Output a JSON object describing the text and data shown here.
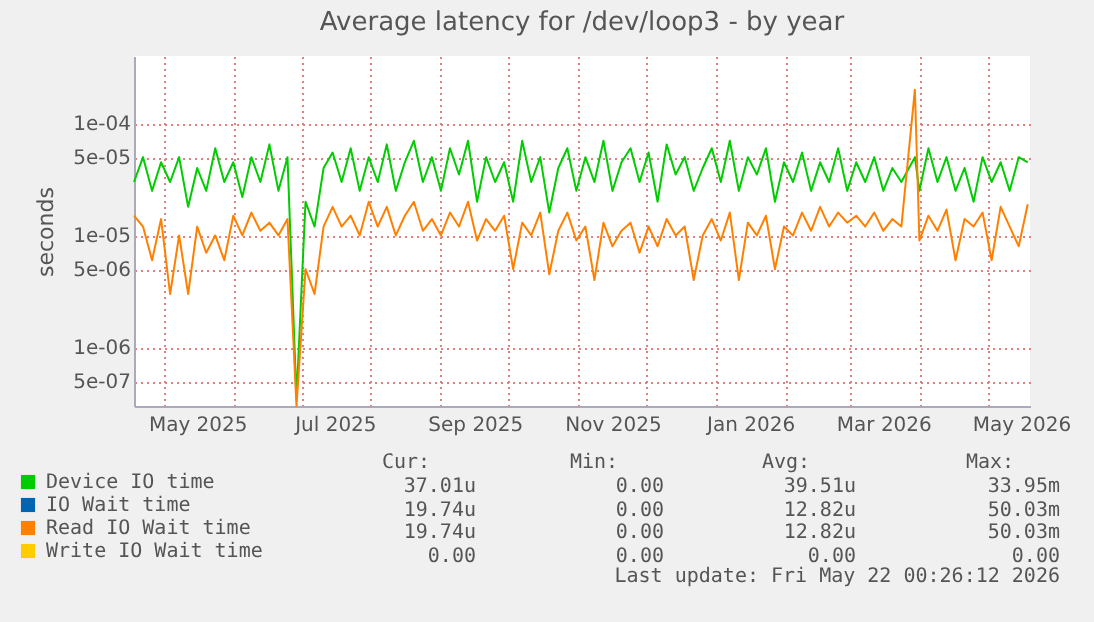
{
  "chart_data": {
    "type": "line",
    "title": "Average latency for /dev/loop3 - by year",
    "ylabel": "seconds",
    "log": true,
    "grid": true,
    "legend": "bottom left",
    "xlim": [
      "2025-04-18",
      "2026-05-20"
    ],
    "xticks": [
      {
        "value": "2025-05-01",
        "label": null
      },
      {
        "value": "2025-05-16",
        "label": "May 2025"
      },
      {
        "value": "2025-06-01",
        "label": null
      },
      {
        "value": "2025-07-01",
        "label": null
      },
      {
        "value": "2025-07-16",
        "label": "Jul 2025"
      },
      {
        "value": "2025-08-01",
        "label": null
      },
      {
        "value": "2025-09-01",
        "label": null
      },
      {
        "value": "2025-09-16",
        "label": "Sep 2025"
      },
      {
        "value": "2025-10-01",
        "label": null
      },
      {
        "value": "2025-11-01",
        "label": null
      },
      {
        "value": "2025-11-16",
        "label": "Nov 2025"
      },
      {
        "value": "2025-12-01",
        "label": null
      },
      {
        "value": "2026-01-01",
        "label": null
      },
      {
        "value": "2026-01-16",
        "label": "Jan 2026"
      },
      {
        "value": "2026-02-01",
        "label": null
      },
      {
        "value": "2026-03-01",
        "label": null
      },
      {
        "value": "2026-03-16",
        "label": "Mar 2026"
      },
      {
        "value": "2026-04-01",
        "label": null
      },
      {
        "value": "2026-05-01",
        "label": null
      },
      {
        "value": "2026-05-16",
        "label": "May 2026"
      }
    ],
    "ylim": [
      3e-07,
      0.0004
    ],
    "yticks": [
      {
        "value": 5e-07,
        "label": "5e-07"
      },
      {
        "value": 1e-06,
        "label": "1e-06"
      },
      {
        "value": 5e-06,
        "label": "5e-06"
      },
      {
        "value": 1e-05,
        "label": "1e-05"
      },
      {
        "value": 5e-05,
        "label": "5e-05"
      },
      {
        "value": 0.0001,
        "label": "1e-04"
      }
    ],
    "x": [
      "2025-04-18",
      "2025-04-22",
      "2025-04-26",
      "2025-04-30",
      "2025-05-04",
      "2025-05-08",
      "2025-05-12",
      "2025-05-16",
      "2025-05-20",
      "2025-05-24",
      "2025-05-28",
      "2025-06-01",
      "2025-06-05",
      "2025-06-09",
      "2025-06-13",
      "2025-06-17",
      "2025-06-21",
      "2025-06-25",
      "2025-06-29",
      "2025-07-03",
      "2025-07-07",
      "2025-07-11",
      "2025-07-15",
      "2025-07-19",
      "2025-07-23",
      "2025-07-27",
      "2025-07-31",
      "2025-08-04",
      "2025-08-08",
      "2025-08-12",
      "2025-08-16",
      "2025-08-20",
      "2025-08-24",
      "2025-08-28",
      "2025-09-01",
      "2025-09-05",
      "2025-09-09",
      "2025-09-13",
      "2025-09-17",
      "2025-09-21",
      "2025-09-25",
      "2025-09-29",
      "2025-10-03",
      "2025-10-07",
      "2025-10-11",
      "2025-10-15",
      "2025-10-19",
      "2025-10-23",
      "2025-10-27",
      "2025-10-31",
      "2025-11-04",
      "2025-11-08",
      "2025-11-12",
      "2025-11-16",
      "2025-11-20",
      "2025-11-24",
      "2025-11-28",
      "2025-12-02",
      "2025-12-06",
      "2025-12-10",
      "2025-12-14",
      "2025-12-18",
      "2025-12-22",
      "2025-12-26",
      "2025-12-30",
      "2026-01-03",
      "2026-01-07",
      "2026-01-11",
      "2026-01-15",
      "2026-01-19",
      "2026-01-23",
      "2026-01-27",
      "2026-01-31",
      "2026-02-04",
      "2026-02-08",
      "2026-02-12",
      "2026-02-16",
      "2026-02-20",
      "2026-02-24",
      "2026-02-28",
      "2026-03-04",
      "2026-03-08",
      "2026-03-12",
      "2026-03-16",
      "2026-03-20",
      "2026-03-24",
      "2026-03-30",
      "2026-04-01",
      "2026-04-05",
      "2026-04-09",
      "2026-04-13",
      "2026-04-17",
      "2026-04-21",
      "2026-04-25",
      "2026-04-29",
      "2026-05-03",
      "2026-05-07",
      "2026-05-11",
      "2026-05-15",
      "2026-05-19"
    ],
    "series": [
      {
        "name": "Device IO time",
        "color": "#00cc00",
        "values": [
          3e-05,
          5e-05,
          2.5e-05,
          4.5e-05,
          3e-05,
          5e-05,
          1.8e-05,
          4e-05,
          2.5e-05,
          6e-05,
          3e-05,
          4.5e-05,
          2.2e-05,
          5e-05,
          3e-05,
          6.5e-05,
          2.5e-05,
          5e-05,
          3.5e-07,
          2e-05,
          1.2e-05,
          4e-05,
          5.5e-05,
          3e-05,
          6e-05,
          2.5e-05,
          5e-05,
          3e-05,
          6.5e-05,
          2.5e-05,
          4.5e-05,
          7e-05,
          3e-05,
          5e-05,
          2.5e-05,
          6e-05,
          3.5e-05,
          7e-05,
          2e-05,
          5e-05,
          3e-05,
          4.5e-05,
          2e-05,
          7e-05,
          3e-05,
          5e-05,
          1.6e-05,
          4e-05,
          6e-05,
          2.5e-05,
          5e-05,
          3e-05,
          7e-05,
          2.5e-05,
          4.5e-05,
          6e-05,
          3e-05,
          5.5e-05,
          2e-05,
          6.5e-05,
          3.5e-05,
          5e-05,
          2.5e-05,
          4e-05,
          6e-05,
          3e-05,
          7e-05,
          2.5e-05,
          5e-05,
          3.5e-05,
          6e-05,
          2e-05,
          4.5e-05,
          3e-05,
          5.5e-05,
          2.5e-05,
          4.5e-05,
          3e-05,
          6e-05,
          2.5e-05,
          4.5e-05,
          3e-05,
          5e-05,
          2.5e-05,
          4e-05,
          3e-05,
          5e-05,
          2.5e-05,
          6e-05,
          3e-05,
          5e-05,
          2.5e-05,
          4e-05,
          2e-05,
          5e-05,
          3e-05,
          4.5e-05,
          2.5e-05,
          5e-05,
          4.5e-05
        ]
      },
      {
        "name": "IO Wait time",
        "color": "#0066b3",
        "values": [
          null,
          null,
          null,
          null,
          null,
          null,
          null,
          null,
          null,
          null,
          null,
          null,
          null,
          null,
          null,
          null,
          null,
          null,
          null,
          null,
          null,
          null,
          null,
          null,
          null,
          null,
          null,
          null,
          null,
          null,
          null,
          null,
          null,
          null,
          null,
          null,
          null,
          null,
          null,
          null,
          null,
          null,
          null,
          null,
          null,
          null,
          null,
          null,
          null,
          null,
          null,
          null,
          null,
          null,
          null,
          null,
          null,
          null,
          null,
          null,
          null,
          null,
          null,
          null,
          null,
          null,
          null,
          null,
          null,
          null,
          null,
          null,
          null,
          null,
          null,
          null,
          null,
          null,
          null,
          null,
          null,
          null,
          null,
          null,
          null,
          null,
          null,
          null,
          null,
          null,
          null,
          null,
          null,
          null,
          null,
          null,
          null,
          null,
          null,
          null
        ]
      },
      {
        "name": "Read IO Wait time",
        "color": "#ff8000",
        "values": [
          1.5e-05,
          1.2e-05,
          6e-06,
          1.4e-05,
          3e-06,
          1e-05,
          3e-06,
          1.2e-05,
          7e-06,
          1e-05,
          6e-06,
          1.5e-05,
          1e-05,
          1.6e-05,
          1.1e-05,
          1.3e-05,
          1e-05,
          1.4e-05,
          3e-07,
          5e-06,
          3e-06,
          1.2e-05,
          1.8e-05,
          1.2e-05,
          1.5e-05,
          1e-05,
          2e-05,
          1.2e-05,
          1.8e-05,
          1e-05,
          1.5e-05,
          2e-05,
          1.1e-05,
          1.4e-05,
          1e-05,
          1.6e-05,
          1.2e-05,
          2e-05,
          9e-06,
          1.4e-05,
          1.1e-05,
          1.5e-05,
          5e-06,
          1.3e-05,
          1e-05,
          1.6e-05,
          4.5e-06,
          1.1e-05,
          1.6e-05,
          9e-06,
          1.2e-05,
          4e-06,
          1.3e-05,
          8e-06,
          1.1e-05,
          1.3e-05,
          7e-06,
          1.2e-05,
          8e-06,
          1.4e-05,
          1e-05,
          1.2e-05,
          4e-06,
          1e-05,
          1.4e-05,
          9e-06,
          1.6e-05,
          4e-06,
          1.3e-05,
          1e-05,
          1.5e-05,
          5e-06,
          1.2e-05,
          1e-05,
          1.6e-05,
          1.1e-05,
          1.8e-05,
          1.2e-05,
          1.6e-05,
          1.3e-05,
          1.5e-05,
          1.2e-05,
          1.6e-05,
          1.1e-05,
          1.4e-05,
          1.2e-05,
          0.0002,
          9e-06,
          1.5e-05,
          1.1e-05,
          1.7e-05,
          6e-06,
          1.4e-05,
          1.2e-05,
          1.6e-05,
          6e-06,
          1.8e-05,
          1.2e-05,
          8e-06,
          1.9e-05
        ]
      },
      {
        "name": "Write IO Wait time",
        "color": "#ffcc00",
        "values": [
          null,
          null,
          null,
          null,
          null,
          null,
          null,
          null,
          null,
          null,
          null,
          null,
          null,
          null,
          null,
          null,
          null,
          null,
          null,
          null,
          null,
          null,
          null,
          null,
          null,
          null,
          null,
          null,
          null,
          null,
          null,
          null,
          null,
          null,
          null,
          null,
          null,
          null,
          null,
          null,
          null,
          null,
          null,
          null,
          null,
          null,
          null,
          null,
          null,
          null,
          null,
          null,
          null,
          null,
          null,
          null,
          null,
          null,
          null,
          null,
          null,
          null,
          null,
          null,
          null,
          null,
          null,
          null,
          null,
          null,
          null,
          null,
          null,
          null,
          null,
          null,
          null,
          null,
          null,
          null,
          null,
          null,
          null,
          null,
          null,
          null,
          null,
          null,
          null,
          null,
          null,
          null,
          null,
          null,
          null,
          null,
          null,
          null,
          null,
          null
        ]
      }
    ],
    "annotations": [
      "Cur:",
      "Min:",
      "Avg:",
      "Max:",
      "37.01u",
      "0.00",
      "39.51u",
      "33.95m",
      "19.74u",
      "0.00",
      "12.82u",
      "50.03m",
      "19.74u",
      "0.00",
      "12.82u",
      "50.03m",
      "0.00",
      "0.00",
      "0.00",
      "0.00",
      "Last update: Fri May 22 00:26:12 2026"
    ]
  }
}
